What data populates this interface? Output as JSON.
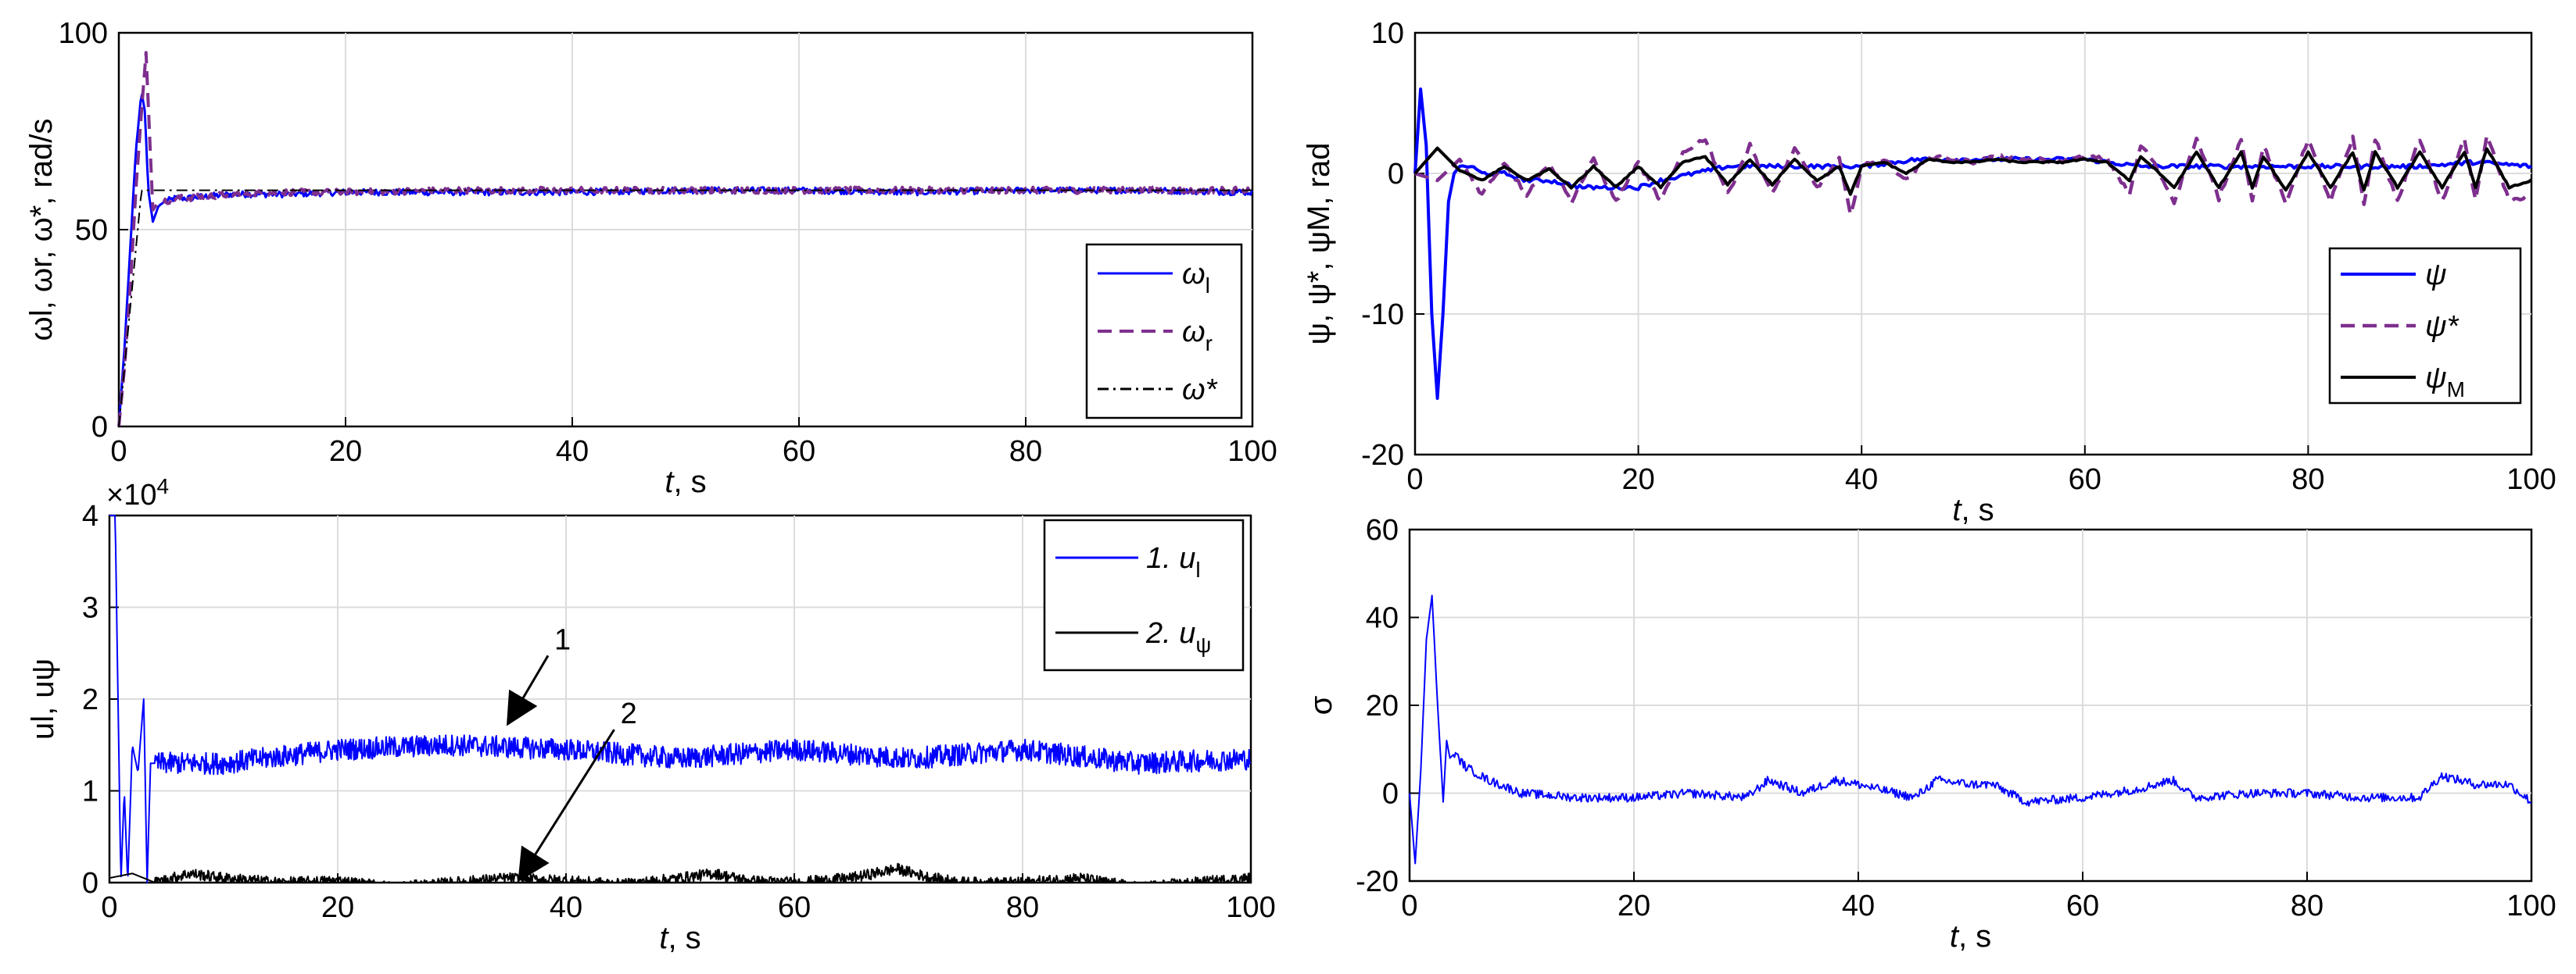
{
  "colors": {
    "blue": "#0000ff",
    "purple": "#7e2f8e",
    "black": "#000000",
    "grid": "#dcdcdc"
  },
  "chart_data": [
    {
      "id": "omega",
      "type": "line",
      "xlabel": "t, s",
      "ylabel": "ωl, ωr, ω*, rad/s",
      "xlim": [
        0,
        100
      ],
      "ylim": [
        0,
        100
      ],
      "xticks": [
        "0",
        "20",
        "40",
        "60",
        "80",
        "100"
      ],
      "yticks": [
        "0",
        "50",
        "100"
      ],
      "series": [
        {
          "name": "ωl",
          "style": "solid",
          "x": [
            0,
            0.5,
            1,
            1.5,
            2,
            2.3,
            2.6,
            3,
            3.5,
            4,
            5,
            6,
            8,
            10,
            15,
            20,
            30,
            40,
            50,
            60,
            70,
            80,
            90,
            100
          ],
          "values": [
            0,
            20,
            45,
            70,
            85,
            80,
            60,
            52,
            56,
            57,
            58,
            58,
            58.5,
            59,
            59,
            59.5,
            59.5,
            59.5,
            60,
            60,
            59.5,
            60,
            60,
            59.5
          ]
        },
        {
          "name": "ωr",
          "style": "dashed",
          "x": [
            0,
            0.5,
            1,
            1.5,
            2,
            2.4,
            2.7,
            3,
            3.5,
            4,
            5,
            6,
            8,
            10,
            15,
            20,
            30,
            40,
            50,
            60,
            70,
            80,
            90,
            100
          ],
          "values": [
            0,
            15,
            35,
            60,
            80,
            95,
            75,
            55,
            57,
            57,
            58,
            58,
            58.5,
            59,
            59.5,
            59.5,
            60,
            60,
            60,
            60,
            60,
            60,
            60,
            60
          ]
        },
        {
          "name": "ω*",
          "style": "dashdot",
          "x": [
            0,
            1,
            2,
            3,
            4,
            100
          ],
          "values": [
            0,
            30,
            60,
            60,
            60,
            60
          ]
        }
      ],
      "legend": {
        "position": "lower-right",
        "entries": [
          {
            "label": "ω",
            "sub": "l"
          },
          {
            "label": "ω",
            "sub": "r"
          },
          {
            "label": "ω*",
            "sub": ""
          }
        ]
      }
    },
    {
      "id": "psi",
      "type": "line",
      "xlabel": "t, s",
      "ylabel": "ψ, ψ*, ψM, rad",
      "xlim": [
        0,
        100
      ],
      "ylim": [
        -20,
        10
      ],
      "xticks": [
        "0",
        "20",
        "40",
        "60",
        "80",
        "100"
      ],
      "yticks": [
        "-20",
        "-10",
        "0",
        "10"
      ],
      "series": [
        {
          "name": "ψ",
          "style": "solid",
          "x": [
            0,
            0.5,
            1,
            1.5,
            2,
            2.5,
            3,
            3.5,
            4,
            5,
            6,
            8,
            10,
            12,
            15,
            18,
            20,
            22,
            25,
            28,
            30,
            35,
            40,
            45,
            50,
            55,
            60,
            65,
            70,
            75,
            80,
            85,
            90,
            95,
            100
          ],
          "values": [
            0,
            6,
            2,
            -10,
            -16,
            -10,
            -2,
            0,
            0.5,
            0.5,
            0,
            0,
            -0.5,
            -0.5,
            -1,
            -1,
            -1,
            -0.5,
            0,
            0.5,
            0.5,
            0.5,
            0.5,
            1,
            1,
            1,
            1,
            0.5,
            0.5,
            0.5,
            0.5,
            0.5,
            0.5,
            0.8,
            0.5
          ]
        },
        {
          "name": "ψ*",
          "style": "dashed",
          "x": [
            0,
            2,
            4,
            6,
            8,
            10,
            12,
            14,
            16,
            18,
            20,
            22,
            24,
            26,
            28,
            30,
            32,
            34,
            36,
            38,
            39,
            40,
            42,
            44,
            46,
            48,
            50,
            52,
            54,
            56,
            58,
            60,
            62,
            64,
            65,
            66,
            68,
            70,
            72,
            74,
            75,
            76,
            78,
            80,
            82,
            84,
            85,
            86,
            88,
            90,
            92,
            94,
            95,
            96,
            98,
            100
          ],
          "values": [
            0,
            -0.5,
            1,
            -1.5,
            0.8,
            -1.5,
            0.8,
            -2,
            1,
            -2,
            0.8,
            -2,
            1.5,
            2.5,
            -1.5,
            2,
            -1.5,
            1.8,
            -1,
            1,
            -3,
            0.5,
            1,
            -0.5,
            1.2,
            1,
            0.8,
            1.2,
            1,
            1,
            0.8,
            1.2,
            1,
            -1.5,
            2,
            1,
            -2,
            2.5,
            -1.8,
            2.5,
            -2,
            2,
            -2.2,
            2.5,
            -2,
            2.5,
            -2.2,
            2.5,
            -2,
            2.5,
            -2,
            2.5,
            -2,
            2.8,
            -2,
            -1.5
          ]
        },
        {
          "name": "ψM",
          "style": "solid",
          "x": [
            0,
            2,
            4,
            6,
            8,
            10,
            12,
            14,
            16,
            18,
            20,
            22,
            24,
            26,
            28,
            30,
            32,
            34,
            36,
            38,
            39,
            40,
            42,
            44,
            46,
            48,
            50,
            52,
            54,
            56,
            58,
            60,
            62,
            64,
            65,
            66,
            68,
            70,
            72,
            74,
            75,
            76,
            78,
            80,
            82,
            84,
            85,
            86,
            88,
            90,
            92,
            94,
            95,
            96,
            98,
            100
          ],
          "values": [
            0,
            1.8,
            0.2,
            -0.5,
            0.5,
            -0.5,
            0.3,
            -1,
            0.5,
            -1,
            0.5,
            -1,
            0.8,
            1.2,
            -0.8,
            1,
            -0.8,
            1,
            -0.5,
            0.5,
            -1.5,
            0.5,
            0.8,
            0,
            1,
            0.8,
            0.8,
            1,
            0.8,
            0.8,
            0.8,
            1,
            0.8,
            -0.5,
            1.2,
            0.5,
            -1,
            1.5,
            -1,
            1.5,
            -1,
            1.2,
            -1.2,
            1.5,
            -1,
            1.5,
            -1.2,
            1.5,
            -1,
            1.5,
            -1,
            1.5,
            -1,
            1.8,
            -1,
            -0.5
          ]
        }
      ],
      "legend": {
        "position": "lower-right",
        "entries": [
          {
            "label": "ψ",
            "sub": ""
          },
          {
            "label": "ψ*",
            "sub": ""
          },
          {
            "label": "ψ",
            "sub": "M"
          }
        ]
      }
    },
    {
      "id": "control",
      "type": "line",
      "xlabel": "t, s",
      "ylabel": "ul, uψ",
      "exponent_label": "×10",
      "exponent_power": "4",
      "xlim": [
        0,
        100
      ],
      "ylim": [
        0,
        4
      ],
      "xticks": [
        "0",
        "20",
        "40",
        "60",
        "80",
        "100"
      ],
      "yticks": [
        "0",
        "1",
        "2",
        "3",
        "4"
      ],
      "series": [
        {
          "name": "1. ul",
          "style": "solid",
          "x": [
            0,
            0.5,
            1,
            1.3,
            1.6,
            2,
            2.5,
            3,
            3.3,
            3.6,
            4,
            10,
            20,
            30,
            40,
            50,
            60,
            70,
            80,
            90,
            100
          ],
          "values": [
            4,
            4,
            0,
            1,
            0,
            1.5,
            1.2,
            2,
            0,
            1.3,
            1.3,
            1.3,
            1.45,
            1.5,
            1.45,
            1.35,
            1.45,
            1.35,
            1.45,
            1.3,
            1.35
          ]
        },
        {
          "name": "2. uψ",
          "style": "solid",
          "x": [
            0,
            2,
            4,
            7,
            10,
            15,
            20,
            25,
            30,
            35,
            40,
            45,
            50,
            53,
            56,
            60,
            65,
            69,
            72,
            75,
            80,
            85,
            90,
            95,
            100
          ],
          "values": [
            0.05,
            0.1,
            0,
            0.1,
            0.05,
            0,
            0.02,
            -0.05,
            0,
            0.05,
            0.02,
            -0.02,
            0.05,
            0.1,
            0.02,
            0,
            0.05,
            0.15,
            0.05,
            0,
            0,
            0.05,
            -0.05,
            0,
            0.05
          ]
        }
      ],
      "annotations": [
        {
          "text": "1",
          "x": 35,
          "y": 1.75
        },
        {
          "text": "2",
          "x": 36,
          "y": 0.05
        }
      ],
      "legend": {
        "position": "top-right",
        "entries": [
          {
            "label": "1. u",
            "sub": "l"
          },
          {
            "label": "2. u",
            "sub": "ψ"
          }
        ]
      }
    },
    {
      "id": "sigma",
      "type": "line",
      "xlabel": "t, s",
      "ylabel": "σ",
      "xlim": [
        0,
        100
      ],
      "ylim": [
        -20,
        60
      ],
      "xticks": [
        "0",
        "20",
        "40",
        "60",
        "80",
        "100"
      ],
      "yticks": [
        "-20",
        "0",
        "20",
        "40",
        "60"
      ],
      "series": [
        {
          "name": "σ",
          "style": "solid",
          "x": [
            0,
            0.5,
            1,
            1.5,
            2,
            2.5,
            3,
            3.3,
            3.6,
            4,
            5,
            7,
            10,
            15,
            20,
            25,
            30,
            32,
            35,
            38,
            40,
            45,
            47,
            50,
            52,
            55,
            60,
            65,
            68,
            70,
            75,
            80,
            85,
            90,
            92,
            95,
            98,
            100
          ],
          "values": [
            0,
            -16,
            5,
            35,
            45,
            20,
            -2,
            12,
            8,
            9,
            6,
            3,
            0,
            -1,
            -1,
            0,
            -1,
            3,
            0,
            3,
            2,
            -1,
            3,
            2,
            2,
            -2,
            -1,
            1,
            3,
            -1,
            0,
            0,
            -1,
            -1,
            4,
            2,
            2,
            -2
          ]
        }
      ]
    }
  ]
}
